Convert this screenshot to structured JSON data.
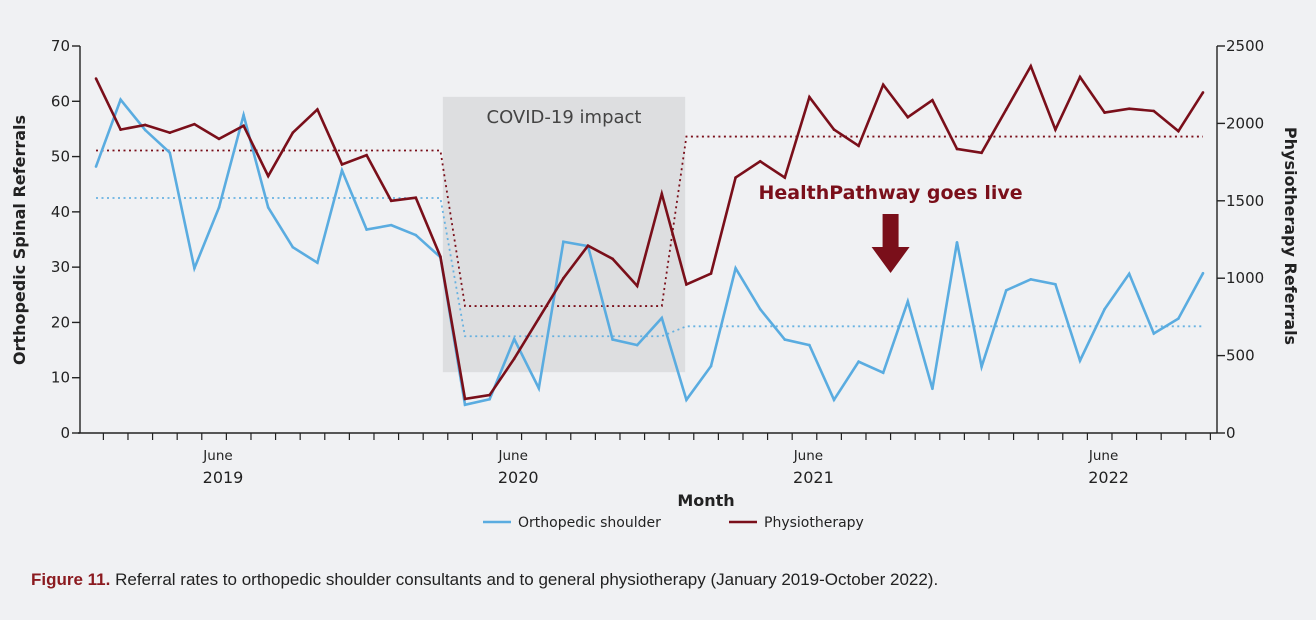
{
  "chart_data": {
    "type": "line",
    "xlabel": "Month",
    "ylabel_left": "Orthopedic Spinal Referrals",
    "ylabel_right": "Physiotherapy Referrals",
    "ylim_left": [
      0,
      70
    ],
    "ylim_right": [
      0,
      2500
    ],
    "yticks_left": [
      0,
      10,
      20,
      30,
      40,
      50,
      60,
      70
    ],
    "yticks_right": [
      0,
      500,
      1000,
      1500,
      2000,
      2500
    ],
    "start": "January 2019",
    "months_count": 46,
    "month_tick_label": "June",
    "month_tick_indices": [
      5,
      17,
      29,
      41
    ],
    "years": [
      {
        "label": "2019",
        "index": 5
      },
      {
        "label": "2020",
        "index": 17
      },
      {
        "label": "2021",
        "index": 29
      },
      {
        "label": "2022",
        "index": 41
      }
    ],
    "series": [
      {
        "name": "Orthopedic shoulder",
        "axis": "left",
        "color": "#5aace0",
        "values": [
          48.2,
          60.3,
          54.8,
          50.7,
          29.8,
          40.8,
          57.5,
          40.8,
          33.6,
          30.8,
          47.5,
          36.8,
          37.6,
          35.8,
          31.8,
          5.1,
          6.1,
          17.0,
          8.1,
          34.6,
          33.8,
          16.9,
          15.9,
          20.8,
          6.0,
          12.1,
          29.8,
          22.4,
          16.9,
          15.9,
          6.0,
          12.9,
          10.9,
          23.8,
          8.0,
          34.5,
          12.0,
          25.8,
          27.8,
          26.9,
          13.1,
          22.4,
          28.8,
          18.0,
          20.7,
          28.9
        ]
      },
      {
        "name": "Physiotherapy",
        "axis": "right",
        "color": "#7a0f1a",
        "values": [
          2290,
          1960,
          1990,
          1940,
          1995,
          1900,
          1985,
          1660,
          1940,
          2090,
          1735,
          1795,
          1500,
          1520,
          1140,
          220,
          245,
          480,
          740,
          1000,
          1210,
          1125,
          950,
          1545,
          960,
          1030,
          1650,
          1755,
          1650,
          2170,
          1960,
          1855,
          2250,
          2040,
          2150,
          1835,
          1810,
          2090,
          2370,
          1960,
          2300,
          2070,
          2095,
          2080,
          1950,
          2200
        ]
      }
    ],
    "baselines": [
      {
        "series": "Orthopedic shoulder",
        "axis": "left",
        "segments": [
          {
            "from": 0,
            "to": 14,
            "value": 42.5
          },
          {
            "from": 15,
            "to": 23,
            "value": 17.5
          },
          {
            "from": 24,
            "to": 45,
            "value": 19.3
          }
        ]
      },
      {
        "series": "Physiotherapy",
        "axis": "right",
        "segments": [
          {
            "from": 0,
            "to": 14,
            "value": 1825
          },
          {
            "from": 15,
            "to": 23,
            "value": 820
          },
          {
            "from": 24,
            "to": 45,
            "value": 1915
          }
        ]
      }
    ],
    "shaded_region": {
      "label": "COVID-19 impact",
      "from": 14.1,
      "to": 23.95,
      "ymin": 11,
      "ymax": 60.8
    },
    "annotation": {
      "text": "HealthPathway goes live",
      "index": 32.3,
      "color": "#7a0f1a"
    },
    "legend": "bottom-center"
  },
  "caption": {
    "lead": "Figure 11.",
    "text": " Referral rates to orthopedic shoulder consultants and to general physiotherapy (January 2019-October 2022)."
  }
}
